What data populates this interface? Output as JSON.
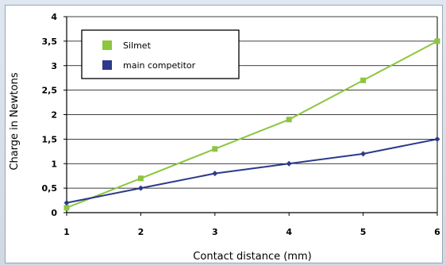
{
  "chart_data": {
    "type": "line",
    "title": "",
    "xlabel": "Contact distance (mm)",
    "ylabel": "Charge in Newtons",
    "x": [
      1,
      2,
      3,
      4,
      5,
      6
    ],
    "xlim": [
      1,
      6
    ],
    "ylim": [
      0,
      4
    ],
    "y_ticks": [
      "0",
      "0,5",
      "1",
      "1,5",
      "2",
      "2,5",
      "3",
      "3,5",
      "4"
    ],
    "x_ticks": [
      "1",
      "2",
      "3",
      "4",
      "5",
      "6"
    ],
    "grid": true,
    "legend_placement": "top-left",
    "series": [
      {
        "name": "Silmet",
        "color": "#8cc63f",
        "marker": "square",
        "values": [
          0.1,
          0.7,
          1.3,
          1.9,
          2.7,
          3.5
        ]
      },
      {
        "name": "main competitor",
        "color": "#2b3a8a",
        "marker": "diamond",
        "values": [
          0.2,
          0.5,
          0.8,
          1.0,
          1.2,
          1.5
        ]
      }
    ]
  }
}
